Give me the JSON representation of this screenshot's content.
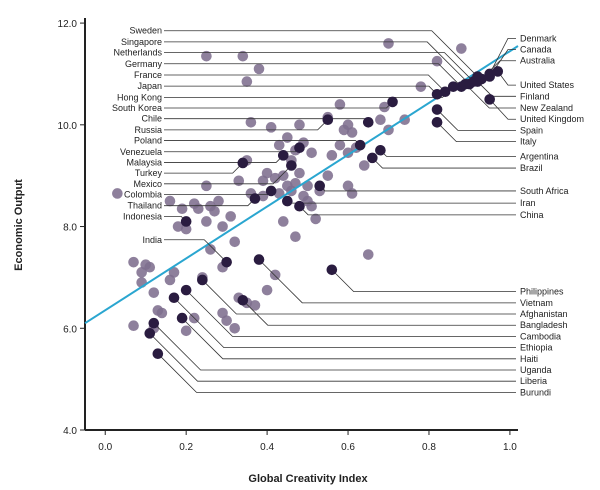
{
  "chart_data": {
    "type": "scatter",
    "xlabel": "Global Creativity Index",
    "ylabel": "Economic Output",
    "xlim": [
      -0.05,
      1.02
    ],
    "ylim": [
      4.0,
      12.1
    ],
    "xticks": [
      "0.0",
      "0.2",
      "0.4",
      "0.6",
      "0.8",
      "1.0"
    ],
    "yticks": [
      "4.0",
      "6.0",
      "8.0",
      "10.0",
      "12.0"
    ],
    "colors": {
      "labeled": "#2a1c40",
      "unlabeled": "#7e6e8e",
      "trend": "#2aa6d0",
      "leader": "#333333"
    },
    "trendline": {
      "x": [
        -0.05,
        1.02
      ],
      "y": [
        6.1,
        11.55
      ]
    },
    "labeled_points": [
      {
        "name": "Sweden",
        "x": 0.92,
        "y": 10.95,
        "side": "left",
        "label_y": 11.85
      },
      {
        "name": "Singapore",
        "x": 0.9,
        "y": 10.8,
        "side": "left",
        "label_y": 11.63
      },
      {
        "name": "Netherlands",
        "x": 0.91,
        "y": 10.85,
        "side": "left",
        "label_y": 11.42
      },
      {
        "name": "Germany",
        "x": 0.88,
        "y": 10.75,
        "side": "left",
        "label_y": 11.2
      },
      {
        "name": "France",
        "x": 0.84,
        "y": 10.65,
        "side": "left",
        "label_y": 10.98
      },
      {
        "name": "Japan",
        "x": 0.82,
        "y": 10.6,
        "side": "left",
        "label_y": 10.76
      },
      {
        "name": "Hong Kong",
        "x": 0.86,
        "y": 10.75,
        "side": "left",
        "label_y": 10.54
      },
      {
        "name": "South Korea",
        "x": 0.71,
        "y": 10.45,
        "side": "left",
        "label_y": 10.33
      },
      {
        "name": "Chile",
        "x": 0.65,
        "y": 10.05,
        "side": "left",
        "label_y": 10.12
      },
      {
        "name": "Russia",
        "x": 0.55,
        "y": 10.1,
        "side": "left",
        "label_y": 9.9
      },
      {
        "name": "Poland",
        "x": 0.63,
        "y": 9.6,
        "side": "left",
        "label_y": 9.69
      },
      {
        "name": "Venezuela",
        "x": 0.48,
        "y": 9.55,
        "side": "left",
        "label_y": 9.47
      },
      {
        "name": "Malaysia",
        "x": 0.44,
        "y": 9.4,
        "side": "left",
        "label_y": 9.26
      },
      {
        "name": "Turkey",
        "x": 0.34,
        "y": 9.25,
        "side": "left",
        "label_y": 9.05
      },
      {
        "name": "Mexico",
        "x": 0.46,
        "y": 9.2,
        "side": "left",
        "label_y": 8.84
      },
      {
        "name": "Colombia",
        "x": 0.41,
        "y": 8.7,
        "side": "left",
        "label_y": 8.63
      },
      {
        "name": "Thailand",
        "x": 0.37,
        "y": 8.55,
        "side": "left",
        "label_y": 8.41
      },
      {
        "name": "Indonesia",
        "x": 0.2,
        "y": 8.1,
        "side": "left",
        "label_y": 8.2
      },
      {
        "name": "India",
        "x": 0.3,
        "y": 7.3,
        "side": "left",
        "label_y": 7.74
      },
      {
        "name": "Denmark",
        "x": 0.95,
        "y": 11.0,
        "side": "right",
        "label_y": 11.7
      },
      {
        "name": "Canada",
        "x": 0.95,
        "y": 10.95,
        "side": "right",
        "label_y": 11.48
      },
      {
        "name": "Australia",
        "x": 0.93,
        "y": 10.9,
        "side": "right",
        "label_y": 11.26
      },
      {
        "name": "United States",
        "x": 0.97,
        "y": 11.05,
        "side": "right",
        "label_y": 10.78
      },
      {
        "name": "Finland",
        "x": 0.92,
        "y": 10.85,
        "side": "right",
        "label_y": 10.56
      },
      {
        "name": "New Zealand",
        "x": 0.89,
        "y": 10.8,
        "side": "right",
        "label_y": 10.33
      },
      {
        "name": "United Kingdom",
        "x": 0.95,
        "y": 10.5,
        "side": "right",
        "label_y": 10.11
      },
      {
        "name": "Spain",
        "x": 0.82,
        "y": 10.3,
        "side": "right",
        "label_y": 9.89
      },
      {
        "name": "Italy",
        "x": 0.82,
        "y": 10.05,
        "side": "right",
        "label_y": 9.67
      },
      {
        "name": "Argentina",
        "x": 0.68,
        "y": 9.5,
        "side": "right",
        "label_y": 9.38
      },
      {
        "name": "Brazil",
        "x": 0.66,
        "y": 9.35,
        "side": "right",
        "label_y": 9.15
      },
      {
        "name": "South Africa",
        "x": 0.53,
        "y": 8.8,
        "side": "right",
        "label_y": 8.7
      },
      {
        "name": "Iran",
        "x": 0.45,
        "y": 8.5,
        "side": "right",
        "label_y": 8.46
      },
      {
        "name": "China",
        "x": 0.48,
        "y": 8.4,
        "side": "right",
        "label_y": 8.23
      },
      {
        "name": "Philippines",
        "x": 0.56,
        "y": 7.15,
        "side": "right",
        "label_y": 6.72
      },
      {
        "name": "Vietnam",
        "x": 0.38,
        "y": 7.35,
        "side": "right",
        "label_y": 6.5
      },
      {
        "name": "Afghanistan",
        "x": 0.24,
        "y": 6.95,
        "side": "right",
        "label_y": 6.28
      },
      {
        "name": "Bangladesh",
        "x": 0.34,
        "y": 6.55,
        "side": "right",
        "label_y": 6.06
      },
      {
        "name": "Cambodia",
        "x": 0.2,
        "y": 6.75,
        "side": "right",
        "label_y": 5.84
      },
      {
        "name": "Ethiopia",
        "x": 0.17,
        "y": 6.6,
        "side": "right",
        "label_y": 5.62
      },
      {
        "name": "Haiti",
        "x": 0.19,
        "y": 6.2,
        "side": "right",
        "label_y": 5.4
      },
      {
        "name": "Uganda",
        "x": 0.12,
        "y": 6.1,
        "side": "right",
        "label_y": 5.18
      },
      {
        "name": "Liberia",
        "x": 0.11,
        "y": 5.9,
        "side": "right",
        "label_y": 4.96
      },
      {
        "name": "Burundi",
        "x": 0.13,
        "y": 5.5,
        "side": "right",
        "label_y": 4.74
      }
    ],
    "unlabeled_points": [
      {
        "x": 0.03,
        "y": 8.65
      },
      {
        "x": 0.07,
        "y": 7.3
      },
      {
        "x": 0.09,
        "y": 7.1
      },
      {
        "x": 0.1,
        "y": 7.25
      },
      {
        "x": 0.11,
        "y": 7.2
      },
      {
        "x": 0.09,
        "y": 6.9
      },
      {
        "x": 0.12,
        "y": 6.7
      },
      {
        "x": 0.07,
        "y": 6.05
      },
      {
        "x": 0.13,
        "y": 6.35
      },
      {
        "x": 0.14,
        "y": 6.3
      },
      {
        "x": 0.12,
        "y": 6.0
      },
      {
        "x": 0.16,
        "y": 6.95
      },
      {
        "x": 0.17,
        "y": 7.1
      },
      {
        "x": 0.16,
        "y": 8.5
      },
      {
        "x": 0.19,
        "y": 8.35
      },
      {
        "x": 0.18,
        "y": 8.0
      },
      {
        "x": 0.2,
        "y": 7.95
      },
      {
        "x": 0.23,
        "y": 8.35
      },
      {
        "x": 0.25,
        "y": 8.8
      },
      {
        "x": 0.26,
        "y": 8.4
      },
      {
        "x": 0.27,
        "y": 8.3
      },
      {
        "x": 0.28,
        "y": 8.5
      },
      {
        "x": 0.25,
        "y": 8.1
      },
      {
        "x": 0.29,
        "y": 8.0
      },
      {
        "x": 0.31,
        "y": 8.2
      },
      {
        "x": 0.26,
        "y": 7.55
      },
      {
        "x": 0.32,
        "y": 7.7
      },
      {
        "x": 0.24,
        "y": 7.0
      },
      {
        "x": 0.29,
        "y": 7.2
      },
      {
        "x": 0.22,
        "y": 6.2
      },
      {
        "x": 0.2,
        "y": 5.95
      },
      {
        "x": 0.29,
        "y": 6.3
      },
      {
        "x": 0.3,
        "y": 6.15
      },
      {
        "x": 0.33,
        "y": 6.6
      },
      {
        "x": 0.35,
        "y": 6.5
      },
      {
        "x": 0.37,
        "y": 6.45
      },
      {
        "x": 0.4,
        "y": 6.75
      },
      {
        "x": 0.42,
        "y": 7.05
      },
      {
        "x": 0.32,
        "y": 6.0
      },
      {
        "x": 0.33,
        "y": 8.9
      },
      {
        "x": 0.35,
        "y": 9.3
      },
      {
        "x": 0.39,
        "y": 8.9
      },
      {
        "x": 0.4,
        "y": 9.05
      },
      {
        "x": 0.39,
        "y": 8.6
      },
      {
        "x": 0.42,
        "y": 8.95
      },
      {
        "x": 0.43,
        "y": 8.65
      },
      {
        "x": 0.44,
        "y": 9.0
      },
      {
        "x": 0.45,
        "y": 8.8
      },
      {
        "x": 0.47,
        "y": 8.85
      },
      {
        "x": 0.48,
        "y": 9.05
      },
      {
        "x": 0.46,
        "y": 9.3
      },
      {
        "x": 0.47,
        "y": 9.5
      },
      {
        "x": 0.49,
        "y": 9.65
      },
      {
        "x": 0.51,
        "y": 9.45
      },
      {
        "x": 0.5,
        "y": 8.8
      },
      {
        "x": 0.49,
        "y": 8.6
      },
      {
        "x": 0.51,
        "y": 8.4
      },
      {
        "x": 0.52,
        "y": 8.15
      },
      {
        "x": 0.47,
        "y": 7.8
      },
      {
        "x": 0.53,
        "y": 8.7
      },
      {
        "x": 0.55,
        "y": 9.0
      },
      {
        "x": 0.56,
        "y": 9.4
      },
      {
        "x": 0.58,
        "y": 9.6
      },
      {
        "x": 0.59,
        "y": 9.9
      },
      {
        "x": 0.6,
        "y": 9.45
      },
      {
        "x": 0.61,
        "y": 9.85
      },
      {
        "x": 0.62,
        "y": 9.55
      },
      {
        "x": 0.64,
        "y": 9.2
      },
      {
        "x": 0.6,
        "y": 8.8
      },
      {
        "x": 0.61,
        "y": 8.65
      },
      {
        "x": 0.45,
        "y": 9.75
      },
      {
        "x": 0.41,
        "y": 9.95
      },
      {
        "x": 0.36,
        "y": 10.05
      },
      {
        "x": 0.48,
        "y": 10.0
      },
      {
        "x": 0.55,
        "y": 10.15
      },
      {
        "x": 0.6,
        "y": 10.0
      },
      {
        "x": 0.7,
        "y": 9.9
      },
      {
        "x": 0.69,
        "y": 10.35
      },
      {
        "x": 0.74,
        "y": 10.1
      },
      {
        "x": 0.68,
        "y": 10.1
      },
      {
        "x": 0.25,
        "y": 11.35
      },
      {
        "x": 0.34,
        "y": 11.35
      },
      {
        "x": 0.38,
        "y": 11.1
      },
      {
        "x": 0.35,
        "y": 10.85
      },
      {
        "x": 0.58,
        "y": 10.4
      },
      {
        "x": 0.7,
        "y": 11.6
      },
      {
        "x": 0.78,
        "y": 10.75
      },
      {
        "x": 0.82,
        "y": 11.25
      },
      {
        "x": 0.88,
        "y": 11.5
      },
      {
        "x": 0.82,
        "y": 10.05
      },
      {
        "x": 0.65,
        "y": 7.45
      },
      {
        "x": 0.22,
        "y": 8.45
      },
      {
        "x": 0.36,
        "y": 8.65
      },
      {
        "x": 0.46,
        "y": 8.7
      },
      {
        "x": 0.43,
        "y": 9.6
      },
      {
        "x": 0.44,
        "y": 8.1
      },
      {
        "x": 0.5,
        "y": 8.5
      }
    ]
  }
}
